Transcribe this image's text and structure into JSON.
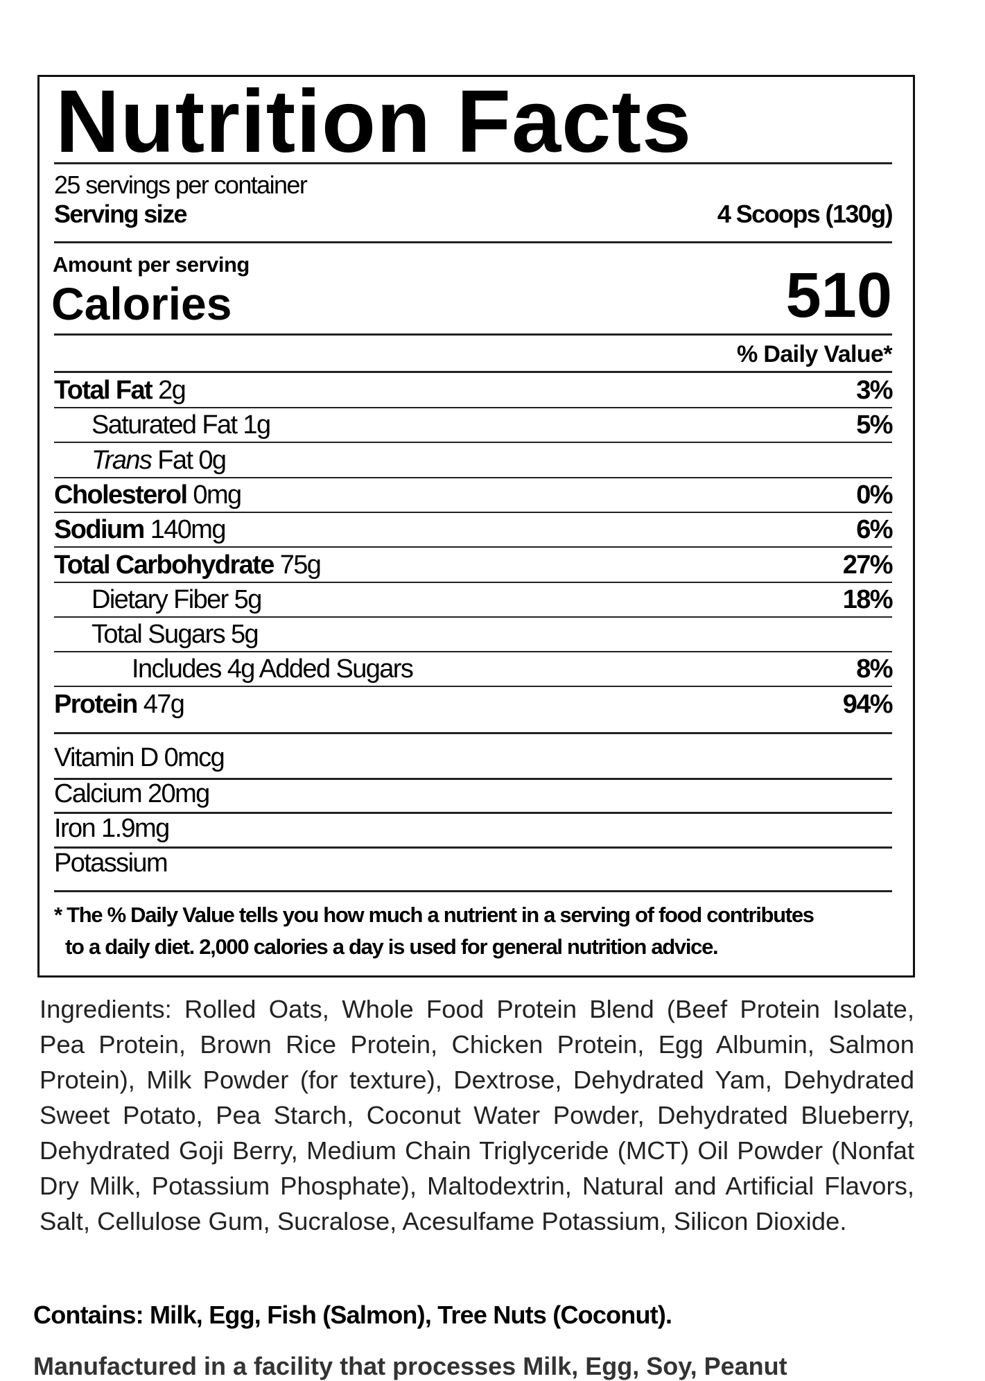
{
  "label": {
    "title": "Nutrition Facts",
    "servings_per_container": "25 servings per container",
    "serving_size_label": "Serving size",
    "serving_size_value": "4 Scoops (130g)",
    "amount_per_serving": "Amount per serving",
    "calories_label": "Calories",
    "calories_value": "510",
    "daily_value_header": "% Daily Value*",
    "nutrients": [
      {
        "name": "Total Fat",
        "amount": "2g",
        "dv": "3%",
        "bold": true,
        "indent": 0
      },
      {
        "name": "Saturated Fat",
        "amount": "1g",
        "dv": "5%",
        "bold": false,
        "indent": 1
      },
      {
        "name": "Trans",
        "name_suffix": "Fat",
        "amount": "0g",
        "dv": "",
        "bold": false,
        "indent": 1,
        "italic": true
      },
      {
        "name": "Cholesterol",
        "amount": "0mg",
        "dv": "0%",
        "bold": true,
        "indent": 0
      },
      {
        "name": "Sodium",
        "amount": "140mg",
        "dv": "6%",
        "bold": true,
        "indent": 0
      },
      {
        "name": "Total Carbohydrate",
        "amount": "75g",
        "dv": "27%",
        "bold": true,
        "indent": 0
      },
      {
        "name": "Dietary Fiber",
        "amount": "5g",
        "dv": "18%",
        "bold": false,
        "indent": 1
      },
      {
        "name": "Total Sugars",
        "amount": "5g",
        "dv": "",
        "bold": false,
        "indent": 1
      },
      {
        "name": "Includes 4g Added Sugars",
        "amount": "",
        "dv": "8%",
        "bold": false,
        "indent": 2
      },
      {
        "name": "Protein",
        "amount": "47g",
        "dv": "94%",
        "bold": true,
        "indent": 0
      }
    ],
    "vitamins": [
      "Vitamin D 0mcg",
      "Calcium 20mg",
      "Iron 1.9mg",
      "Potassium"
    ],
    "footnote_line1": "* The % Daily Value tells you how much a nutrient in a serving of food contributes",
    "footnote_line2": "to a daily diet. 2,000 calories a day is used for general nutrition advice."
  },
  "ingredients": "Ingredients: Rolled Oats, Whole Food Protein Blend (Beef Protein Isolate, Pea Protein, Brown Rice Protein, Chicken Protein, Egg Albumin, Salmon Protein), Milk Powder (for texture), Dextrose, Dehydrated Yam, Dehydrated Sweet Potato, Pea Starch, Coconut Water Powder, Dehydrated Blueberry, Dehydrated Goji Berry, Medium Chain Triglyceride (MCT) Oil Powder (Nonfat Dry Milk, Potassium Phosphate), Maltodextrin, Natural and Artificial Flavors, Salt, Cellulose Gum, Sucralose, Acesulfame Potassium, Silicon Dioxide.",
  "contains": "Contains: Milk, Egg, Fish (Salmon), Tree Nuts (Coconut).",
  "manufactured_note": "Manufactured in a facility that processes Milk, Egg, Soy, Peanut"
}
